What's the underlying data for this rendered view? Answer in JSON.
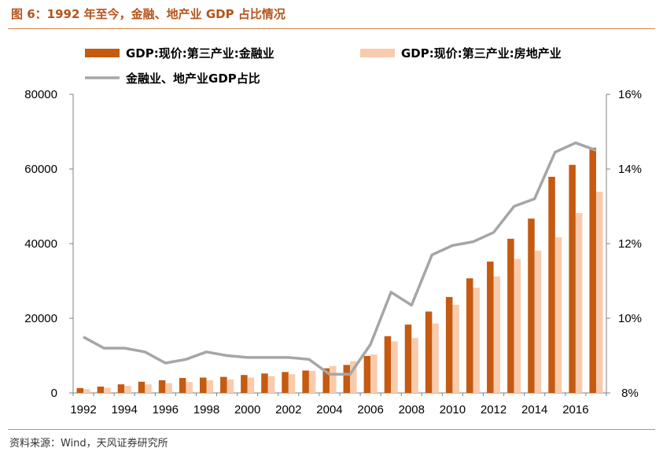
{
  "figure_title": "图 6：1992 年至今，金融、地产业 GDP 占比情况",
  "source_text": "资料来源：Wind，天风证券研究所",
  "colors": {
    "finance_bar": "#c55a11",
    "realestate_bar": "#f8cbad",
    "share_line": "#a6a6a6",
    "axis": "#808080",
    "accent": "#b5541c"
  },
  "chart_data": {
    "type": "bar+line",
    "title": "",
    "categories": [
      "1992",
      "1993",
      "1994",
      "1995",
      "1996",
      "1997",
      "1998",
      "1999",
      "2000",
      "2001",
      "2002",
      "2003",
      "2004",
      "2005",
      "2006",
      "2007",
      "2008",
      "2009",
      "2010",
      "2011",
      "2012",
      "2013",
      "2014",
      "2015",
      "2016",
      "2017"
    ],
    "x_tick_labels": [
      "1992",
      "1994",
      "1996",
      "1998",
      "2000",
      "2002",
      "2004",
      "2006",
      "2008",
      "2010",
      "2012",
      "2014",
      "2016"
    ],
    "series": [
      {
        "name": "GDP:现价:第三产业:金融业",
        "type": "bar",
        "axis": "left",
        "values": [
          1300,
          1700,
          2300,
          3000,
          3400,
          4000,
          4100,
          4300,
          4800,
          5200,
          5600,
          6000,
          6600,
          7500,
          9900,
          15200,
          18300,
          21800,
          25700,
          30700,
          35200,
          41300,
          46700,
          57900,
          61100,
          65700
        ]
      },
      {
        "name": "GDP:现价:第三产业:房地产业",
        "type": "bar",
        "axis": "left",
        "values": [
          1000,
          1400,
          1900,
          2300,
          2600,
          2900,
          3400,
          3600,
          4100,
          4500,
          5000,
          5900,
          7200,
          8500,
          10300,
          13800,
          14700,
          18600,
          23600,
          28200,
          31200,
          35900,
          38100,
          41700,
          48200,
          53900
        ]
      },
      {
        "name": "金融业、地产业GDP占比",
        "type": "line",
        "axis": "right",
        "values": [
          9.5,
          9.2,
          9.2,
          9.1,
          8.8,
          8.9,
          9.1,
          9.0,
          8.95,
          8.95,
          8.95,
          8.9,
          8.5,
          8.5,
          9.3,
          10.7,
          10.35,
          11.7,
          11.95,
          12.05,
          12.3,
          13.0,
          13.2,
          14.45,
          14.7,
          14.5
        ]
      }
    ],
    "y_left": {
      "min": 0,
      "max": 80000,
      "ticks": [
        0,
        20000,
        40000,
        60000,
        80000
      ],
      "tick_labels": [
        "0",
        "20000",
        "40000",
        "60000",
        "80000"
      ]
    },
    "y_right": {
      "min": 8,
      "max": 16,
      "ticks": [
        8,
        10,
        12,
        14,
        16
      ],
      "tick_labels": [
        "8%",
        "10%",
        "12%",
        "14%",
        "16%"
      ]
    },
    "grid": false,
    "legend_position": "top"
  }
}
